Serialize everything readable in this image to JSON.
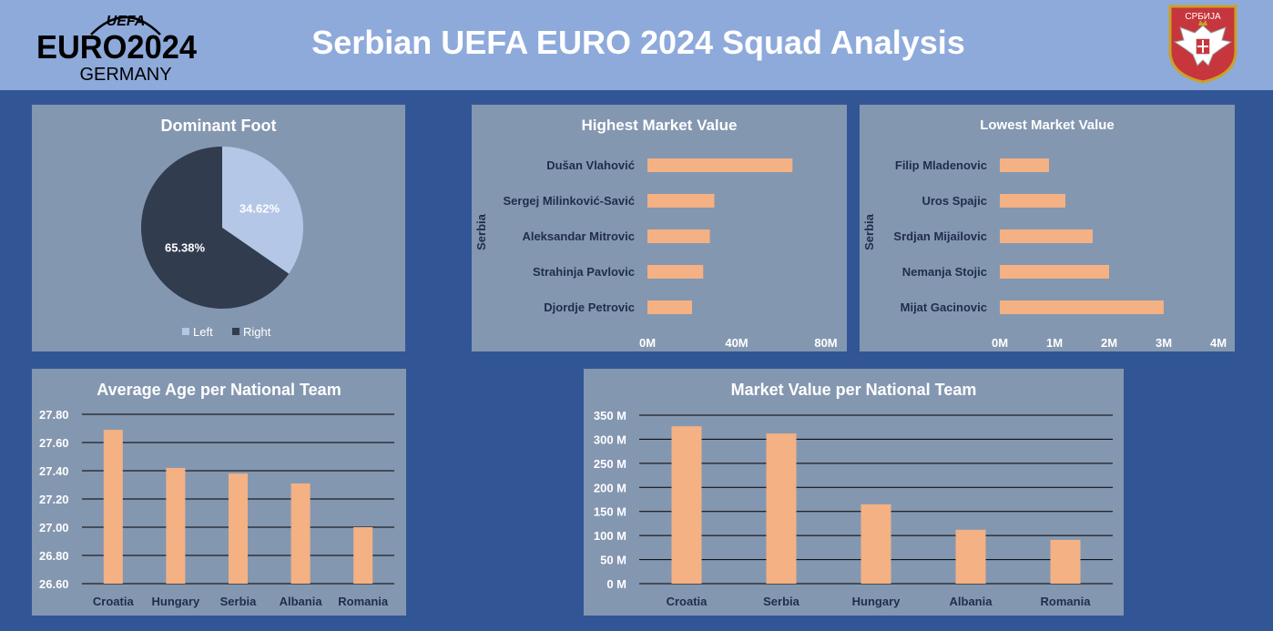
{
  "header": {
    "title": "Serbian UEFA EURO 2024 Squad Analysis",
    "logo": {
      "uefa": "UEFA",
      "euro": "EURO2024",
      "germany": "GERMANY"
    },
    "crest_text": "СРБИЈА"
  },
  "colors": {
    "header_bg": "#8eaadb",
    "page_bg": "#325695",
    "panel_bg": "#8497b0",
    "bar": "#f4b183",
    "left": "#b4c7e7",
    "right": "#323c4f"
  },
  "chart_data": [
    {
      "type": "pie",
      "title": "Dominant Foot",
      "slices": [
        {
          "label": "Left",
          "value": 34.62,
          "text": "34.62%"
        },
        {
          "label": "Right",
          "value": 65.38,
          "text": "65.38%"
        }
      ],
      "legend": "bottom"
    },
    {
      "type": "bar",
      "orientation": "horizontal",
      "title": "Highest Market Value",
      "ylabel": "Serbia",
      "categories": [
        "Dušan Vlahović",
        "Sergej Milinković-Savić",
        "Aleksandar Mitrovic",
        "Strahinja Pavlovic",
        "Djordje Petrovic"
      ],
      "values": [
        65,
        30,
        28,
        25,
        20
      ],
      "xlim": [
        0,
        80
      ],
      "xticks": [
        0,
        40,
        80
      ],
      "tick_labels": [
        "0M",
        "40M",
        "80M"
      ]
    },
    {
      "type": "bar",
      "orientation": "horizontal",
      "title": "Lowest Market Value",
      "ylabel": "Serbia",
      "categories": [
        "Filip Mladenovic",
        "Uros Spajic",
        "Srdjan Mijailovic",
        "Nemanja Stojic",
        "Mijat Gacinovic"
      ],
      "values": [
        0.9,
        1.2,
        1.7,
        2.0,
        3.0
      ],
      "xlim": [
        0,
        4
      ],
      "xticks": [
        0,
        1,
        2,
        3,
        4
      ],
      "tick_labels": [
        "0M",
        "1M",
        "2M",
        "3M",
        "4M"
      ]
    },
    {
      "type": "bar",
      "title": "Average Age per National Team",
      "categories": [
        "Croatia",
        "Hungary",
        "Serbia",
        "Albania",
        "Romania"
      ],
      "values": [
        27.69,
        27.42,
        27.38,
        27.31,
        27.0
      ],
      "ylim": [
        26.6,
        27.8
      ],
      "yticks": [
        26.6,
        26.8,
        27.0,
        27.2,
        27.4,
        27.6,
        27.8
      ],
      "tick_labels": [
        "26.60",
        "26.80",
        "27.00",
        "27.20",
        "27.40",
        "27.60",
        "27.80"
      ],
      "grid": true
    },
    {
      "type": "bar",
      "title": "Market Value per National Team",
      "categories": [
        "Croatia",
        "Serbia",
        "Hungary",
        "Albania",
        "Romania"
      ],
      "values": [
        327,
        312,
        165,
        112,
        91
      ],
      "ylim": [
        0,
        350
      ],
      "yticks": [
        0,
        50,
        100,
        150,
        200,
        250,
        300,
        350
      ],
      "tick_labels": [
        "0 M",
        "50 M",
        "100 M",
        "150 M",
        "200 M",
        "250 M",
        "300 M",
        "350 M"
      ],
      "grid": true
    }
  ]
}
